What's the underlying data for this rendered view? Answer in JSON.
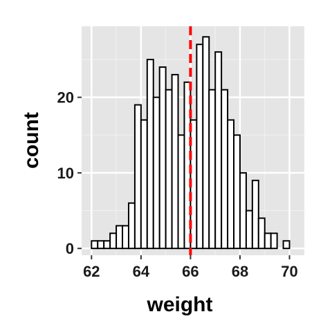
{
  "chart_data": {
    "type": "bar",
    "title": "",
    "xlabel": "weight",
    "ylabel": "count",
    "xlim": [
      61.6,
      70.6
    ],
    "ylim": [
      -0.9,
      29.4
    ],
    "x_ticks": [
      62,
      64,
      66,
      68,
      70
    ],
    "y_ticks": [
      0,
      10,
      20
    ],
    "bin_width": 0.25,
    "bin_start": 61.75,
    "bins": [
      {
        "x0": 61.75,
        "x1": 62.0,
        "count": 0
      },
      {
        "x0": 62.0,
        "x1": 62.25,
        "count": 1
      },
      {
        "x0": 62.25,
        "x1": 62.5,
        "count": 1
      },
      {
        "x0": 62.5,
        "x1": 62.75,
        "count": 1
      },
      {
        "x0": 62.75,
        "x1": 63.0,
        "count": 2
      },
      {
        "x0": 63.0,
        "x1": 63.25,
        "count": 3
      },
      {
        "x0": 63.25,
        "x1": 63.5,
        "count": 3
      },
      {
        "x0": 63.5,
        "x1": 63.75,
        "count": 6
      },
      {
        "x0": 63.75,
        "x1": 64.0,
        "count": 19
      },
      {
        "x0": 64.0,
        "x1": 64.25,
        "count": 17
      },
      {
        "x0": 64.25,
        "x1": 64.5,
        "count": 25
      },
      {
        "x0": 64.5,
        "x1": 64.75,
        "count": 20
      },
      {
        "x0": 64.75,
        "x1": 65.0,
        "count": 24
      },
      {
        "x0": 65.0,
        "x1": 65.25,
        "count": 21
      },
      {
        "x0": 65.25,
        "x1": 65.5,
        "count": 23
      },
      {
        "x0": 65.5,
        "x1": 65.75,
        "count": 15
      },
      {
        "x0": 65.75,
        "x1": 66.0,
        "count": 22
      },
      {
        "x0": 66.0,
        "x1": 66.25,
        "count": 17
      },
      {
        "x0": 66.25,
        "x1": 66.5,
        "count": 27
      },
      {
        "x0": 66.5,
        "x1": 66.75,
        "count": 28
      },
      {
        "x0": 66.75,
        "x1": 67.0,
        "count": 21
      },
      {
        "x0": 67.0,
        "x1": 67.25,
        "count": 26
      },
      {
        "x0": 67.25,
        "x1": 67.5,
        "count": 21
      },
      {
        "x0": 67.5,
        "x1": 67.75,
        "count": 17
      },
      {
        "x0": 67.75,
        "x1": 68.0,
        "count": 15
      },
      {
        "x0": 68.0,
        "x1": 68.25,
        "count": 10
      },
      {
        "x0": 68.25,
        "x1": 68.5,
        "count": 5
      },
      {
        "x0": 68.5,
        "x1": 68.75,
        "count": 9
      },
      {
        "x0": 68.75,
        "x1": 69.0,
        "count": 4
      },
      {
        "x0": 69.0,
        "x1": 69.25,
        "count": 2
      },
      {
        "x0": 69.25,
        "x1": 69.5,
        "count": 2
      },
      {
        "x0": 69.5,
        "x1": 69.75,
        "count": 0
      },
      {
        "x0": 69.75,
        "x1": 70.0,
        "count": 1
      },
      {
        "x0": 70.0,
        "x1": 70.25,
        "count": 0
      }
    ],
    "mean_line": {
      "x": 66.0,
      "color": "#ff0000",
      "style": "dashed"
    },
    "grid": true,
    "colors": {
      "panel_background": "#e5e5e5",
      "grid_major": "#ffffff",
      "grid_minor": "#f2f2f2",
      "bar_fill": "#ffffff",
      "bar_outline": "#000000",
      "tick_mark": "#333333"
    },
    "legend": "none"
  }
}
